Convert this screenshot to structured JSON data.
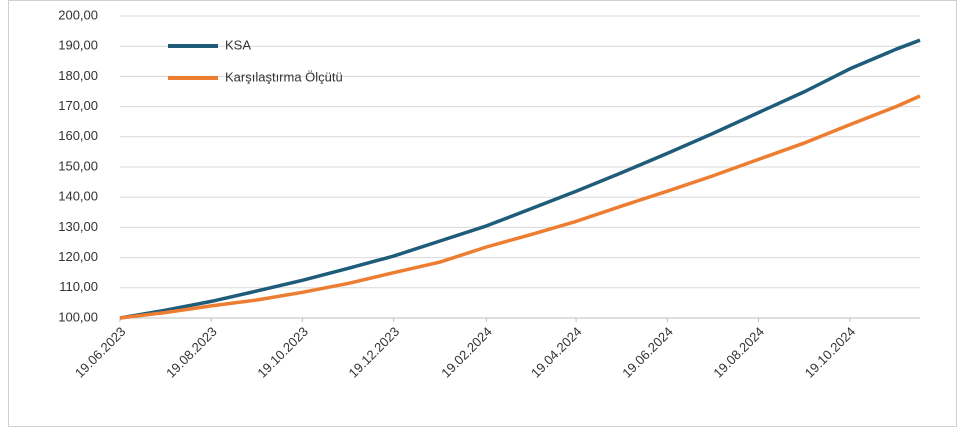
{
  "chart_data": {
    "type": "line",
    "x": [
      "2023-06-19",
      "2023-07-19",
      "2023-08-19",
      "2023-09-19",
      "2023-10-19",
      "2023-11-19",
      "2023-12-19",
      "2024-01-19",
      "2024-02-19",
      "2024-03-19",
      "2024-04-19",
      "2024-05-19",
      "2024-06-19",
      "2024-07-19",
      "2024-08-19",
      "2024-09-19",
      "2024-10-19",
      "2024-11-19",
      "2024-12-05"
    ],
    "series": [
      {
        "name": "KSA",
        "color": "#1f5c7a",
        "values": [
          100,
          102.5,
          105.5,
          109,
          112.5,
          116.5,
          120.5,
          125.5,
          130.5,
          136,
          142,
          148,
          154.5,
          161,
          168,
          175,
          182.5,
          189,
          192
        ]
      },
      {
        "name": "Karşılaştırma Ölçütü",
        "color": "#ed7d31",
        "values": [
          100,
          101.8,
          104,
          106,
          108.5,
          111.5,
          115,
          118.5,
          123.5,
          127.5,
          132,
          137,
          142,
          147,
          152.5,
          158,
          164,
          170,
          173.5
        ]
      }
    ],
    "xlim": [
      "2023-06-19",
      "2024-12-05"
    ],
    "xticks": [
      {
        "value": "2023-06-19",
        "label": "19.06.2023"
      },
      {
        "value": "2023-08-19",
        "label": "19.08.2023"
      },
      {
        "value": "2023-10-19",
        "label": "19.10.2023"
      },
      {
        "value": "2023-12-19",
        "label": "19.12.2023"
      },
      {
        "value": "2024-02-19",
        "label": "19.02.2024"
      },
      {
        "value": "2024-04-19",
        "label": "19.04.2024"
      },
      {
        "value": "2024-06-19",
        "label": "19.06.2024"
      },
      {
        "value": "2024-08-19",
        "label": "19.08.2024"
      },
      {
        "value": "2024-10-19",
        "label": "19.10.2024"
      }
    ],
    "ylim": [
      100,
      200
    ],
    "yticks": [
      {
        "value": 100,
        "label": "100,00"
      },
      {
        "value": 110,
        "label": "110,00"
      },
      {
        "value": 120,
        "label": "120,00"
      },
      {
        "value": 130,
        "label": "130,00"
      },
      {
        "value": 140,
        "label": "140,00"
      },
      {
        "value": 150,
        "label": "150,00"
      },
      {
        "value": 160,
        "label": "160,00"
      },
      {
        "value": 170,
        "label": "170,00"
      },
      {
        "value": 180,
        "label": "180,00"
      },
      {
        "value": 190,
        "label": "190,00"
      },
      {
        "value": 200,
        "label": "200,00"
      }
    ],
    "grid": true,
    "legend": "top-left"
  }
}
